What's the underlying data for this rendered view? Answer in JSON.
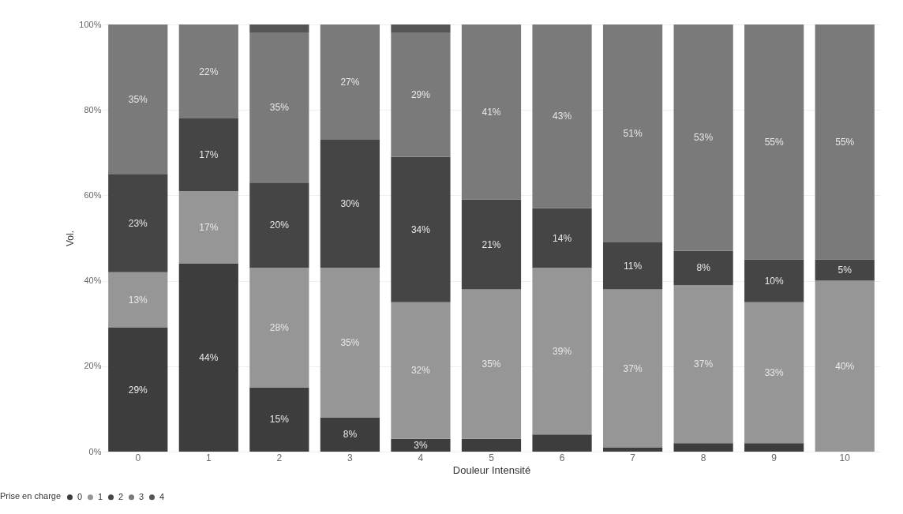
{
  "chart_data": {
    "type": "bar",
    "stacked": true,
    "xlabel": "Douleur Intensité",
    "ylabel": "Vol.",
    "legend_title": "Prise en charge",
    "legend": "bottom left",
    "grid": "y",
    "categories": [
      "0",
      "1",
      "2",
      "3",
      "4",
      "5",
      "6",
      "7",
      "8",
      "9",
      "10"
    ],
    "ylim": [
      0,
      100
    ],
    "yticks": [
      {
        "value": 0,
        "label": "0%"
      },
      {
        "value": 20,
        "label": "20%"
      },
      {
        "value": 40,
        "label": "40%"
      },
      {
        "value": 60,
        "label": "60%"
      },
      {
        "value": 80,
        "label": "80%"
      },
      {
        "value": 100,
        "label": "100%"
      }
    ],
    "series": [
      {
        "name": "0",
        "color": "#3d3d3d",
        "values": [
          29,
          44,
          15,
          8,
          3,
          3,
          4,
          1,
          2,
          2,
          0
        ],
        "value_labels": [
          "29%",
          "44%",
          "15%",
          "8%",
          "3%",
          null,
          null,
          null,
          null,
          null,
          null
        ]
      },
      {
        "name": "1",
        "color": "#969696",
        "values": [
          13,
          17,
          28,
          35,
          32,
          35,
          39,
          37,
          37,
          33,
          40
        ],
        "value_labels": [
          "13%",
          "17%",
          "28%",
          "35%",
          "32%",
          "35%",
          "39%",
          "37%",
          "37%",
          "33%",
          "40%"
        ]
      },
      {
        "name": "2",
        "color": "#454545",
        "values": [
          23,
          17,
          20,
          30,
          34,
          21,
          14,
          11,
          8,
          10,
          5
        ],
        "value_labels": [
          "23%",
          "17%",
          "20%",
          "30%",
          "34%",
          "21%",
          "14%",
          "11%",
          "8%",
          "10%",
          "5%"
        ]
      },
      {
        "name": "3",
        "color": "#7a7a7a",
        "values": [
          35,
          22,
          35,
          27,
          29,
          41,
          43,
          51,
          53,
          55,
          55
        ],
        "value_labels": [
          "35%",
          "22%",
          "35%",
          "27%",
          "29%",
          "41%",
          "43%",
          "51%",
          "53%",
          "55%",
          "55%"
        ]
      },
      {
        "name": "4",
        "color": "#555555",
        "values": [
          0,
          0,
          2,
          0,
          2,
          0,
          0,
          0,
          0,
          0,
          0
        ],
        "value_labels": [
          null,
          null,
          null,
          null,
          null,
          null,
          null,
          null,
          null,
          null,
          null
        ]
      }
    ]
  }
}
